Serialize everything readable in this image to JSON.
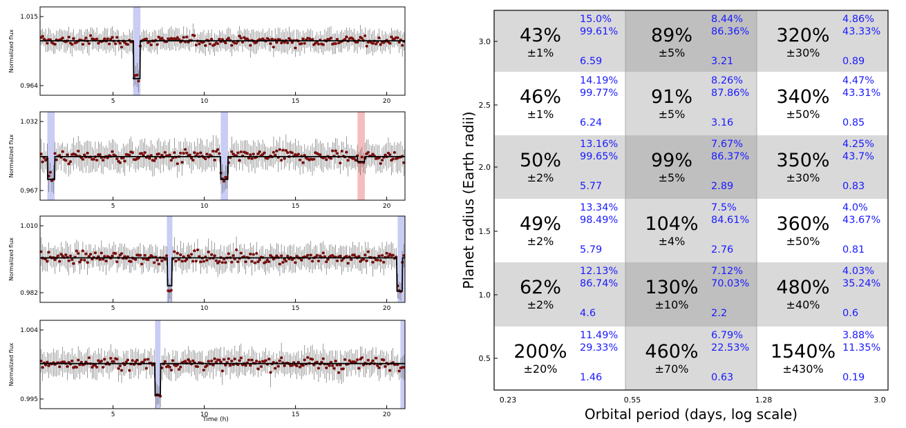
{
  "chart_data": [
    {
      "type": "line",
      "panel": "light-curves",
      "xlabel": "Time (h)",
      "ylabel": "Normalized flux",
      "xticks": [
        "5",
        "10",
        "15",
        "20"
      ],
      "xlim": [
        1,
        21
      ],
      "subplots": [
        {
          "ylabel": "Normalized flux",
          "yticks": [
            "1.015",
            "0.964"
          ],
          "ylim": [
            0.962,
            1.018
          ],
          "baseline": 0.9965,
          "noise": 0.006,
          "transits": [
            {
              "t": 6.3,
              "depth": 0.024,
              "width": 0.35
            }
          ],
          "highlights": [
            {
              "x0": 6.1,
              "x1": 6.5,
              "color": "blue"
            }
          ]
        },
        {
          "ylabel": "Normalized flux",
          "yticks": [
            "1.032",
            "0.967"
          ],
          "ylim": [
            0.965,
            1.035
          ],
          "baseline": 0.9995,
          "noise": 0.01,
          "transits": [
            {
              "t": 1.6,
              "depth": 0.018,
              "width": 0.4
            },
            {
              "t": 11.1,
              "depth": 0.018,
              "width": 0.4
            },
            {
              "t": 18.6,
              "depth": 0.004,
              "width": 0.4
            }
          ],
          "highlights": [
            {
              "x0": 1.4,
              "x1": 1.8,
              "color": "blue"
            },
            {
              "x0": 10.9,
              "x1": 11.3,
              "color": "blue"
            },
            {
              "x0": 18.4,
              "x1": 18.8,
              "color": "red"
            }
          ]
        },
        {
          "ylabel": "Normalized flux",
          "yticks": [
            "1.010",
            "0.982"
          ],
          "ylim": [
            0.9815,
            1.0125
          ],
          "baseline": 0.9975,
          "noise": 0.004,
          "transits": [
            {
              "t": 8.1,
              "depth": 0.01,
              "width": 0.25
            },
            {
              "t": 20.7,
              "depth": 0.012,
              "width": 0.3
            }
          ],
          "highlights": [
            {
              "x0": 7.95,
              "x1": 8.25,
              "color": "blue"
            },
            {
              "x0": 20.6,
              "x1": 21.0,
              "color": "blue"
            }
          ]
        },
        {
          "ylabel": "Normalized flux",
          "yticks": [
            "1.004",
            "0.995"
          ],
          "ylim": [
            0.9948,
            1.0046
          ],
          "baseline": 0.9998,
          "noise": 0.0013,
          "transits": [
            {
              "t": 7.45,
              "depth": 0.0035,
              "width": 0.3
            }
          ],
          "highlights": [
            {
              "x0": 7.3,
              "x1": 7.6,
              "color": "blue"
            },
            {
              "x0": 20.75,
              "x1": 21.0,
              "color": "blue"
            }
          ]
        }
      ]
    },
    {
      "type": "table",
      "panel": "occurrence-grid",
      "xlabel": "Orbital period (days, log scale)",
      "ylabel": "Planet radius (Earth radii)",
      "xticks": [
        "0.23",
        "0.55",
        "1.28",
        "3.0"
      ],
      "yticks": [
        "3.0",
        "2.5",
        "2.0",
        "1.5",
        "1.0",
        "0.5"
      ],
      "shade_colors": {
        "0": "#ffffff",
        "1": "#d9d9d9",
        "2": "#bfbfbf"
      },
      "rows": [
        [
          {
            "main": "43%",
            "err": "±1%",
            "b1": "15.0%",
            "b2": "99.61%",
            "b3": "6.59",
            "shade": 1
          },
          {
            "main": "89%",
            "err": "±5%",
            "b1": "8.44%",
            "b2": "86.36%",
            "b3": "3.21",
            "shade": 2
          },
          {
            "main": "320%",
            "err": "±30%",
            "b1": "4.86%",
            "b2": "43.33%",
            "b3": "0.89",
            "shade": 1
          }
        ],
        [
          {
            "main": "46%",
            "err": "±1%",
            "b1": "14.19%",
            "b2": "99.77%",
            "b3": "6.24",
            "shade": 0
          },
          {
            "main": "91%",
            "err": "±5%",
            "b1": "8.26%",
            "b2": "87.86%",
            "b3": "3.16",
            "shade": 1
          },
          {
            "main": "340%",
            "err": "±50%",
            "b1": "4.47%",
            "b2": "43.31%",
            "b3": "0.85",
            "shade": 0
          }
        ],
        [
          {
            "main": "50%",
            "err": "±2%",
            "b1": "13.16%",
            "b2": "99.65%",
            "b3": "5.77",
            "shade": 1
          },
          {
            "main": "99%",
            "err": "±5%",
            "b1": "7.67%",
            "b2": "86.37%",
            "b3": "2.89",
            "shade": 2
          },
          {
            "main": "350%",
            "err": "±30%",
            "b1": "4.25%",
            "b2": "43.7%",
            "b3": "0.83",
            "shade": 1
          }
        ],
        [
          {
            "main": "49%",
            "err": "±2%",
            "b1": "13.34%",
            "b2": "98.49%",
            "b3": "5.79",
            "shade": 0
          },
          {
            "main": "104%",
            "err": "±4%",
            "b1": "7.5%",
            "b2": "84.61%",
            "b3": "2.76",
            "shade": 1
          },
          {
            "main": "360%",
            "err": "±50%",
            "b1": "4.0%",
            "b2": "43.67%",
            "b3": "0.81",
            "shade": 0
          }
        ],
        [
          {
            "main": "62%",
            "err": "±2%",
            "b1": "12.13%",
            "b2": "86.74%",
            "b3": "4.6",
            "shade": 1
          },
          {
            "main": "130%",
            "err": "±10%",
            "b1": "7.12%",
            "b2": "70.03%",
            "b3": "2.2",
            "shade": 2
          },
          {
            "main": "480%",
            "err": "±40%",
            "b1": "4.03%",
            "b2": "35.24%",
            "b3": "0.6",
            "shade": 1
          }
        ],
        [
          {
            "main": "200%",
            "err": "±20%",
            "b1": "11.49%",
            "b2": "29.33%",
            "b3": "1.46",
            "shade": 0
          },
          {
            "main": "460%",
            "err": "±70%",
            "b1": "6.79%",
            "b2": "22.53%",
            "b3": "0.63",
            "shade": 1
          },
          {
            "main": "1540%",
            "err": "±430%",
            "b1": "3.88%",
            "b2": "11.35%",
            "b3": "0.19",
            "shade": 0
          }
        ]
      ]
    }
  ]
}
